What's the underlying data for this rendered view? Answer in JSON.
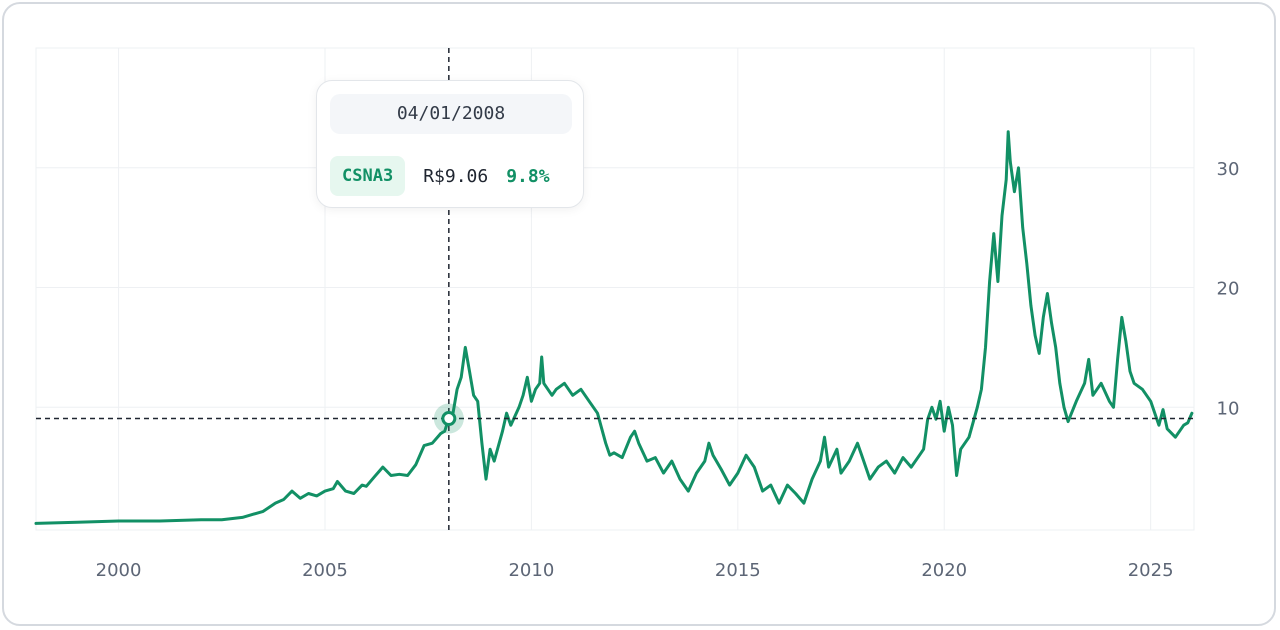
{
  "chart_data": {
    "type": "line",
    "title": "",
    "xlabel": "",
    "ylabel": "",
    "series": [
      {
        "name": "CSNA3",
        "color": "#129065",
        "points": [
          [
            1998.0,
            0.3
          ],
          [
            1999.0,
            0.4
          ],
          [
            2000.0,
            0.5
          ],
          [
            2001.0,
            0.5
          ],
          [
            2002.0,
            0.6
          ],
          [
            2002.5,
            0.6
          ],
          [
            2003.0,
            0.8
          ],
          [
            2003.5,
            1.3
          ],
          [
            2003.8,
            2.0
          ],
          [
            2004.0,
            2.3
          ],
          [
            2004.2,
            3.0
          ],
          [
            2004.4,
            2.4
          ],
          [
            2004.6,
            2.8
          ],
          [
            2004.8,
            2.6
          ],
          [
            2005.0,
            3.0
          ],
          [
            2005.2,
            3.2
          ],
          [
            2005.3,
            3.8
          ],
          [
            2005.5,
            3.0
          ],
          [
            2005.7,
            2.8
          ],
          [
            2005.9,
            3.5
          ],
          [
            2006.0,
            3.4
          ],
          [
            2006.2,
            4.2
          ],
          [
            2006.4,
            5.0
          ],
          [
            2006.6,
            4.3
          ],
          [
            2006.8,
            4.4
          ],
          [
            2007.0,
            4.3
          ],
          [
            2007.2,
            5.2
          ],
          [
            2007.4,
            6.8
          ],
          [
            2007.6,
            7.0
          ],
          [
            2007.8,
            7.8
          ],
          [
            2007.9,
            8.0
          ],
          [
            2008.0,
            9.06
          ],
          [
            2008.1,
            9.5
          ],
          [
            2008.2,
            11.5
          ],
          [
            2008.3,
            12.5
          ],
          [
            2008.4,
            15.0
          ],
          [
            2008.5,
            13.0
          ],
          [
            2008.6,
            11.0
          ],
          [
            2008.7,
            10.5
          ],
          [
            2008.8,
            7.0
          ],
          [
            2008.9,
            4.0
          ],
          [
            2009.0,
            6.5
          ],
          [
            2009.1,
            5.5
          ],
          [
            2009.3,
            8.0
          ],
          [
            2009.4,
            9.5
          ],
          [
            2009.5,
            8.5
          ],
          [
            2009.7,
            10.0
          ],
          [
            2009.8,
            11.0
          ],
          [
            2009.9,
            12.5
          ],
          [
            2010.0,
            10.5
          ],
          [
            2010.1,
            11.5
          ],
          [
            2010.2,
            12.0
          ],
          [
            2010.25,
            14.2
          ],
          [
            2010.3,
            12.0
          ],
          [
            2010.5,
            11.0
          ],
          [
            2010.6,
            11.5
          ],
          [
            2010.8,
            12.0
          ],
          [
            2011.0,
            11.0
          ],
          [
            2011.2,
            11.5
          ],
          [
            2011.4,
            10.5
          ],
          [
            2011.6,
            9.5
          ],
          [
            2011.8,
            7.0
          ],
          [
            2011.9,
            6.0
          ],
          [
            2012.0,
            6.2
          ],
          [
            2012.2,
            5.8
          ],
          [
            2012.4,
            7.5
          ],
          [
            2012.5,
            8.0
          ],
          [
            2012.6,
            7.0
          ],
          [
            2012.8,
            5.5
          ],
          [
            2013.0,
            5.8
          ],
          [
            2013.2,
            4.5
          ],
          [
            2013.4,
            5.5
          ],
          [
            2013.6,
            4.0
          ],
          [
            2013.8,
            3.0
          ],
          [
            2014.0,
            4.5
          ],
          [
            2014.2,
            5.5
          ],
          [
            2014.3,
            7.0
          ],
          [
            2014.4,
            6.0
          ],
          [
            2014.6,
            4.8
          ],
          [
            2014.8,
            3.5
          ],
          [
            2015.0,
            4.5
          ],
          [
            2015.2,
            6.0
          ],
          [
            2015.4,
            5.0
          ],
          [
            2015.6,
            3.0
          ],
          [
            2015.8,
            3.5
          ],
          [
            2016.0,
            2.0
          ],
          [
            2016.2,
            3.5
          ],
          [
            2016.4,
            2.8
          ],
          [
            2016.6,
            2.0
          ],
          [
            2016.8,
            4.0
          ],
          [
            2017.0,
            5.5
          ],
          [
            2017.1,
            7.5
          ],
          [
            2017.2,
            5.0
          ],
          [
            2017.4,
            6.5
          ],
          [
            2017.5,
            4.5
          ],
          [
            2017.7,
            5.5
          ],
          [
            2017.9,
            7.0
          ],
          [
            2018.0,
            6.0
          ],
          [
            2018.2,
            4.0
          ],
          [
            2018.4,
            5.0
          ],
          [
            2018.6,
            5.5
          ],
          [
            2018.8,
            4.5
          ],
          [
            2019.0,
            5.8
          ],
          [
            2019.2,
            5.0
          ],
          [
            2019.4,
            6.0
          ],
          [
            2019.5,
            6.5
          ],
          [
            2019.6,
            9.0
          ],
          [
            2019.7,
            10.0
          ],
          [
            2019.8,
            9.0
          ],
          [
            2019.9,
            10.5
          ],
          [
            2020.0,
            8.0
          ],
          [
            2020.1,
            10.0
          ],
          [
            2020.2,
            8.5
          ],
          [
            2020.3,
            4.3
          ],
          [
            2020.4,
            6.5
          ],
          [
            2020.6,
            7.5
          ],
          [
            2020.8,
            10.0
          ],
          [
            2020.9,
            11.5
          ],
          [
            2021.0,
            15.0
          ],
          [
            2021.1,
            20.5
          ],
          [
            2021.2,
            24.5
          ],
          [
            2021.3,
            20.5
          ],
          [
            2021.4,
            26.0
          ],
          [
            2021.5,
            29.0
          ],
          [
            2021.55,
            33.0
          ],
          [
            2021.6,
            30.5
          ],
          [
            2021.7,
            28.0
          ],
          [
            2021.8,
            30.0
          ],
          [
            2021.9,
            25.0
          ],
          [
            2022.0,
            22.0
          ],
          [
            2022.1,
            18.5
          ],
          [
            2022.2,
            16.0
          ],
          [
            2022.3,
            14.5
          ],
          [
            2022.4,
            17.5
          ],
          [
            2022.5,
            19.5
          ],
          [
            2022.6,
            17.0
          ],
          [
            2022.7,
            15.0
          ],
          [
            2022.8,
            12.0
          ],
          [
            2022.9,
            10.0
          ],
          [
            2023.0,
            8.8
          ],
          [
            2023.2,
            10.5
          ],
          [
            2023.4,
            12.0
          ],
          [
            2023.5,
            14.0
          ],
          [
            2023.6,
            11.0
          ],
          [
            2023.8,
            12.0
          ],
          [
            2024.0,
            10.5
          ],
          [
            2024.1,
            10.0
          ],
          [
            2024.2,
            14.0
          ],
          [
            2024.3,
            17.5
          ],
          [
            2024.4,
            15.5
          ],
          [
            2024.5,
            13.0
          ],
          [
            2024.6,
            12.0
          ],
          [
            2024.8,
            11.5
          ],
          [
            2025.0,
            10.5
          ],
          [
            2025.1,
            9.5
          ],
          [
            2025.2,
            8.5
          ],
          [
            2025.3,
            9.8
          ],
          [
            2025.4,
            8.2
          ],
          [
            2025.6,
            7.5
          ],
          [
            2025.8,
            8.5
          ],
          [
            2025.9,
            8.7
          ],
          [
            2026.0,
            9.5
          ]
        ]
      }
    ],
    "x_ticks": [
      "2000",
      "2005",
      "2010",
      "2015",
      "2020",
      "2025"
    ],
    "x_tick_values": [
      2000,
      2005,
      2010,
      2015,
      2020,
      2025
    ],
    "y_ticks": [
      "10",
      "20",
      "30"
    ],
    "y_tick_values": [
      10,
      20,
      30
    ],
    "xlim": [
      1998.0,
      2026.05
    ],
    "ylim": [
      -0.25,
      40
    ],
    "grid": true,
    "crosshair": {
      "x": 2008.0,
      "y": 9.06
    }
  },
  "tooltip": {
    "date": "04/01/2008",
    "ticker": "CSNA3",
    "price": "R$9.06",
    "change": "9.8%"
  },
  "colors": {
    "line": "#129065",
    "grid": "#eef0f3",
    "crosshair": "#1f2530",
    "badge_bg": "#e6f7ef"
  }
}
